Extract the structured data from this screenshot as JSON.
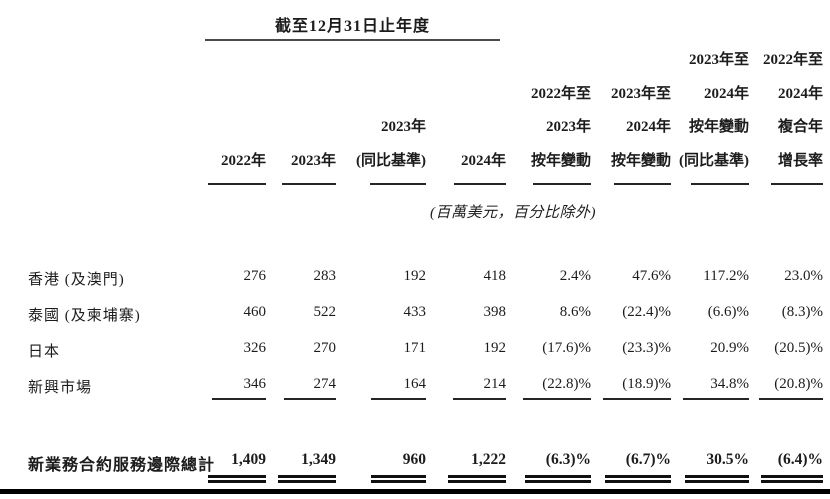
{
  "table": {
    "period_header": "截至12月31日止年度",
    "unit_note": "(百萬美元，百分比除外)",
    "columns": [
      {
        "lines": [
          "2022年"
        ]
      },
      {
        "lines": [
          "2023年"
        ]
      },
      {
        "lines": [
          "2023年",
          "(同比基準)"
        ]
      },
      {
        "lines": [
          "2024年"
        ]
      },
      {
        "lines": [
          "2022年至",
          "2023年",
          "按年變動"
        ]
      },
      {
        "lines": [
          "2023年至",
          "2024年",
          "按年變動"
        ]
      },
      {
        "lines": [
          "2023年至",
          "2024年",
          "按年變動",
          "(同比基準)"
        ]
      },
      {
        "lines": [
          "2022年至",
          "2024年",
          "複合年",
          "增長率"
        ]
      }
    ],
    "rows": [
      {
        "label": "香港 (及澳門)",
        "values": [
          "276",
          "283",
          "192",
          "418",
          "2.4%",
          "47.6%",
          "117.2%",
          "23.0%"
        ]
      },
      {
        "label": "泰國 (及柬埔寨)",
        "values": [
          "460",
          "522",
          "433",
          "398",
          "8.6%",
          "(22.4)%",
          "(6.6)%",
          "(8.3)%"
        ]
      },
      {
        "label": "日本",
        "values": [
          "326",
          "270",
          "171",
          "192",
          "(17.6)%",
          "(23.3)%",
          "20.9%",
          "(20.5)%"
        ]
      },
      {
        "label": "新興市場",
        "values": [
          "346",
          "274",
          "164",
          "214",
          "(22.8)%",
          "(18.9)%",
          "34.8%",
          "(20.8)%"
        ]
      }
    ],
    "total_row": {
      "label": "新業務合約服務邊際總計",
      "values": [
        "1,409",
        "1,349",
        "960",
        "1,222",
        "(6.3)%",
        "(6.7)%",
        "30.5%",
        "(6.4)%"
      ]
    },
    "colors": {
      "text": "#1c1c1c",
      "rule": "#262626",
      "period_rule": "#4a4a4a",
      "bottom_bar": "#000000",
      "background": "#ffffff"
    }
  }
}
